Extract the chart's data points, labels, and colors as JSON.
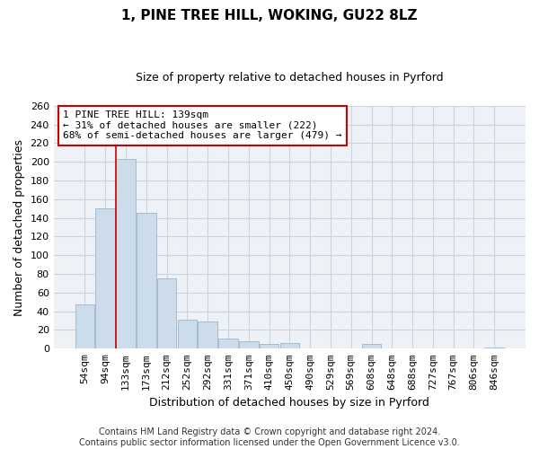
{
  "title": "1, PINE TREE HILL, WOKING, GU22 8LZ",
  "subtitle": "Size of property relative to detached houses in Pyrford",
  "xlabel": "Distribution of detached houses by size in Pyrford",
  "ylabel": "Number of detached properties",
  "bar_labels": [
    "54sqm",
    "94sqm",
    "133sqm",
    "173sqm",
    "212sqm",
    "252sqm",
    "292sqm",
    "331sqm",
    "371sqm",
    "410sqm",
    "450sqm",
    "490sqm",
    "529sqm",
    "569sqm",
    "608sqm",
    "648sqm",
    "688sqm",
    "727sqm",
    "767sqm",
    "806sqm",
    "846sqm"
  ],
  "bar_values": [
    47,
    150,
    203,
    145,
    75,
    31,
    29,
    11,
    8,
    5,
    6,
    0,
    0,
    0,
    5,
    0,
    0,
    0,
    0,
    0,
    1
  ],
  "bar_color": "#cddceb",
  "bar_edge_color": "#9ab5cc",
  "vline_color": "#cc0000",
  "vline_x_index": 2,
  "ylim": [
    0,
    260
  ],
  "yticks": [
    0,
    20,
    40,
    60,
    80,
    100,
    120,
    140,
    160,
    180,
    200,
    220,
    240,
    260
  ],
  "annotation_box_text": "1 PINE TREE HILL: 139sqm\n← 31% of detached houses are smaller (222)\n68% of semi-detached houses are larger (479) →",
  "footer_text": "Contains HM Land Registry data © Crown copyright and database right 2024.\nContains public sector information licensed under the Open Government Licence v3.0.",
  "bg_color": "#ffffff",
  "plot_bg_color": "#eef2f7",
  "grid_color": "#c8d4e0",
  "title_fontsize": 11,
  "subtitle_fontsize": 9,
  "ylabel_fontsize": 9,
  "xlabel_fontsize": 9,
  "tick_fontsize": 8,
  "footer_fontsize": 7
}
